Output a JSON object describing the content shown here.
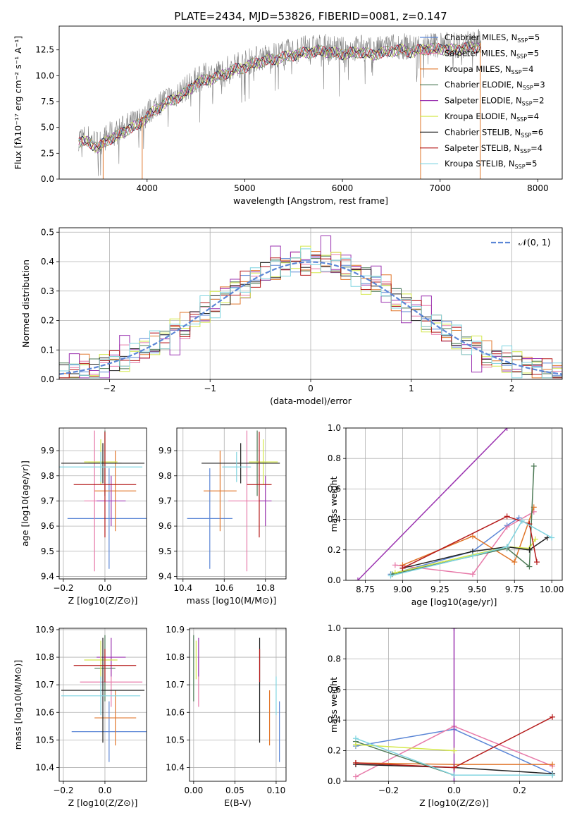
{
  "colors": {
    "Chabrier MILES": "#5b86d6",
    "Salpeter MILES": "#e77aa9",
    "Kroupa MILES": "#e0762a",
    "Chabrier ELODIE": "#4d7a56",
    "Salpeter ELODIE": "#9b33b0",
    "Kroupa ELODIE": "#d4e84a",
    "Chabrier STELIB": "#222222",
    "Salpeter STELIB": "#b51a1a",
    "Kroupa STELIB": "#7fd4e0",
    "normal_curve": "#5b86d6",
    "grid": "#b0b0b0",
    "spectrum": "#808080"
  },
  "chart_data": [
    {
      "type": "line",
      "id": "spectrum",
      "title": "PLATE=2434, MJD=53826, FIBERID=0081, z=0.147",
      "xlabel": "wavelength [Angstrom, rest frame]",
      "ylabel": "Flux [fλ10⁻¹⁷ erg cm⁻² s⁻¹ A⁻¹]",
      "xlim": [
        3100,
        8250
      ],
      "ylim": [
        0,
        14.8
      ],
      "xticks": [
        4000,
        5000,
        6000,
        7000,
        8000
      ],
      "yticks": [
        0.0,
        2.5,
        5.0,
        7.5,
        10.0,
        12.5
      ],
      "grid": false,
      "legend_placement": "top-right",
      "legend": [
        {
          "label": "Chabrier MILES, N",
          "sub": "SSP",
          "suffix": "=5"
        },
        {
          "label": "Salpeter MILES, N",
          "sub": "SSP",
          "suffix": "=5"
        },
        {
          "label": "Kroupa MILES, N",
          "sub": "SSP",
          "suffix": "=4"
        },
        {
          "label": "Chabrier ELODIE, N",
          "sub": "SSP",
          "suffix": "=3"
        },
        {
          "label": "Salpeter ELODIE, N",
          "sub": "SSP",
          "suffix": "=2"
        },
        {
          "label": "Kroupa ELODIE, N",
          "sub": "SSP",
          "suffix": "=4"
        },
        {
          "label": "Chabrier STELIB, N",
          "sub": "SSP",
          "suffix": "=6"
        },
        {
          "label": "Salpeter STELIB, N",
          "sub": "SSP",
          "suffix": "=4"
        },
        {
          "label": "Kroupa STELIB, N",
          "sub": "SSP",
          "suffix": "=5"
        }
      ],
      "envelope": [
        [
          3300,
          4.0
        ],
        [
          3400,
          4.0
        ],
        [
          3500,
          3.4
        ],
        [
          3600,
          4.2
        ],
        [
          3700,
          4.6
        ],
        [
          3800,
          5.2
        ],
        [
          3900,
          5.6
        ],
        [
          4000,
          6.4
        ],
        [
          4100,
          7.2
        ],
        [
          4200,
          7.8
        ],
        [
          4300,
          8.2
        ],
        [
          4400,
          8.8
        ],
        [
          4500,
          9.6
        ],
        [
          4600,
          10.0
        ],
        [
          4700,
          10.2
        ],
        [
          4800,
          10.6
        ],
        [
          4900,
          11.0
        ],
        [
          5000,
          11.2
        ],
        [
          5100,
          11.6
        ],
        [
          5200,
          11.8
        ],
        [
          5300,
          12.0
        ],
        [
          5400,
          12.2
        ],
        [
          5500,
          12.4
        ],
        [
          5600,
          12.6
        ],
        [
          5700,
          12.7
        ],
        [
          5800,
          12.8
        ],
        [
          5900,
          12.6
        ],
        [
          6000,
          12.5
        ],
        [
          6100,
          12.6
        ],
        [
          6200,
          12.7
        ],
        [
          6300,
          12.4
        ],
        [
          6400,
          12.6
        ],
        [
          6500,
          12.8
        ],
        [
          6600,
          12.9
        ],
        [
          6700,
          12.7
        ],
        [
          6800,
          12.9
        ],
        [
          6900,
          13.0
        ],
        [
          7000,
          13.0
        ],
        [
          7100,
          12.9
        ],
        [
          7200,
          13.0
        ],
        [
          7300,
          13.1
        ],
        [
          7400,
          13.2
        ]
      ],
      "vertical_drops": [
        3550,
        3950,
        6800,
        7410
      ]
    },
    {
      "type": "line",
      "id": "residuals",
      "xlabel": "(data-model)/error",
      "ylabel": "Normed distribution",
      "xlim": [
        -2.5,
        2.5
      ],
      "ylim": [
        0,
        0.515
      ],
      "xticks": [
        -2,
        -1,
        0,
        1,
        2
      ],
      "yticks": [
        0.0,
        0.1,
        0.2,
        0.3,
        0.4,
        0.5
      ],
      "grid": true,
      "legend_placement": "top-right",
      "legend": [
        "𝒩(0, 1)"
      ],
      "bin_width": 0.1,
      "hist_jitter": [
        [
          0.02,
          -0.03,
          0.04,
          -0.01,
          0.05,
          -0.04,
          0.03,
          0.0,
          -0.02,
          0.06,
          -0.05,
          0.02,
          0.01,
          -0.03,
          0.04,
          -0.02,
          0.03,
          -0.04,
          0.02,
          0.05,
          -0.01,
          -0.03,
          0.02,
          0.04,
          -0.05,
          0.01,
          0.03,
          -0.02,
          -0.04,
          0.02
        ],
        [
          -0.04,
          0.05,
          -0.02,
          0.03,
          -0.05,
          0.02,
          0.04,
          -0.03,
          0.01,
          -0.02,
          0.06,
          -0.04,
          0.03,
          0.05,
          -0.02,
          0.01,
          -0.06,
          0.03,
          0.02,
          -0.03,
          0.04,
          0.02,
          -0.05,
          0.01,
          0.03,
          -0.04,
          0.02,
          0.05,
          -0.01,
          -0.03
        ]
      ]
    },
    {
      "type": "scatter",
      "id": "age-vs-Z",
      "xlabel": "Z [log10(Z/Z⊙)]",
      "ylabel": "age  [log10(age/yr)]",
      "xlim": [
        -0.22,
        0.2
      ],
      "ylim": [
        9.39,
        9.99
      ],
      "xticks": [
        -0.2,
        0.0
      ],
      "yticks": [
        9.4,
        9.5,
        9.6,
        9.7,
        9.8,
        9.9
      ],
      "grid": true,
      "points": [
        {
          "series": "Chabrier MILES",
          "x": 0.02,
          "xerr": 0.2,
          "y": 9.63,
          "yerr": 0.2
        },
        {
          "series": "Salpeter MILES",
          "x": -0.05,
          "xerr": 0.05,
          "y": 9.7,
          "yerr": 0.28
        },
        {
          "series": "Kroupa MILES",
          "x": 0.05,
          "xerr": 0.1,
          "y": 9.74,
          "yerr": 0.16
        },
        {
          "series": "Chabrier ELODIE",
          "x": 0.0,
          "xerr": 0.08,
          "y": 9.85,
          "yerr": 0.13
        },
        {
          "series": "Salpeter ELODIE",
          "x": 0.03,
          "xerr": 0.07,
          "y": 9.7,
          "yerr": 0.1
        },
        {
          "series": "Kroupa ELODIE",
          "x": -0.02,
          "xerr": 0.08,
          "y": 9.855,
          "yerr": 0.09
        },
        {
          "series": "Chabrier STELIB",
          "x": -0.01,
          "xerr": 0.2,
          "y": 9.85,
          "yerr": 0.08
        },
        {
          "series": "Salpeter STELIB",
          "x": 0.0,
          "xerr": 0.15,
          "y": 9.765,
          "yerr": 0.21
        },
        {
          "series": "Kroupa STELIB",
          "x": -0.02,
          "xerr": 0.2,
          "y": 9.835,
          "yerr": 0.06
        }
      ]
    },
    {
      "type": "scatter",
      "id": "age-vs-mass",
      "xlabel": "mass [log10(M/M⊙)]",
      "ylabel": "",
      "xlim": [
        10.37,
        10.9
      ],
      "ylim": [
        9.39,
        9.99
      ],
      "xticks": [
        10.4,
        10.6,
        10.8
      ],
      "yticks": [
        9.4,
        9.5,
        9.6,
        9.7,
        9.8,
        9.9
      ],
      "grid": true,
      "points": [
        {
          "series": "Chabrier MILES",
          "x": 10.53,
          "xerr": 0.11,
          "y": 9.63,
          "yerr": 0.2
        },
        {
          "series": "Salpeter MILES",
          "x": 10.71,
          "xerr": 0.09,
          "y": 9.7,
          "yerr": 0.28
        },
        {
          "series": "Kroupa MILES",
          "x": 10.58,
          "xerr": 0.08,
          "y": 9.74,
          "yerr": 0.16
        },
        {
          "series": "Chabrier ELODIE",
          "x": 10.76,
          "xerr": 0.05,
          "y": 9.85,
          "yerr": 0.13
        },
        {
          "series": "Salpeter ELODIE",
          "x": 10.8,
          "xerr": 0.03,
          "y": 9.7,
          "yerr": 0.1
        },
        {
          "series": "Kroupa ELODIE",
          "x": 10.79,
          "xerr": 0.07,
          "y": 9.855,
          "yerr": 0.09
        },
        {
          "series": "Chabrier STELIB",
          "x": 10.68,
          "xerr": 0.19,
          "y": 9.85,
          "yerr": 0.08
        },
        {
          "series": "Salpeter STELIB",
          "x": 10.77,
          "xerr": 0.06,
          "y": 9.765,
          "yerr": 0.21
        },
        {
          "series": "Kroupa STELIB",
          "x": 10.66,
          "xerr": 0.07,
          "y": 9.835,
          "yerr": 0.06
        }
      ]
    },
    {
      "type": "line",
      "id": "mass-weight-vs-age",
      "xlabel": "age  [log10(age/yr)]",
      "ylabel": "mass weight",
      "xlim": [
        8.62,
        10.07
      ],
      "ylim": [
        0,
        1.0
      ],
      "xticks": [
        8.75,
        9.0,
        9.25,
        9.5,
        9.75,
        10.0
      ],
      "yticks": [
        0.0,
        0.2,
        0.4,
        0.6,
        0.8,
        1.0
      ],
      "grid": true,
      "series": [
        {
          "name": "Chabrier MILES",
          "x": [
            8.92,
            9.47,
            9.7,
            9.78
          ],
          "y": [
            0.04,
            0.19,
            0.36,
            0.41
          ]
        },
        {
          "name": "Salpeter MILES",
          "x": [
            8.95,
            9.47,
            9.7,
            9.88
          ],
          "y": [
            0.1,
            0.04,
            0.35,
            0.45
          ]
        },
        {
          "name": "Kroupa MILES",
          "x": [
            9.0,
            9.47,
            9.75,
            9.88
          ],
          "y": [
            0.1,
            0.29,
            0.12,
            0.48
          ]
        },
        {
          "name": "Chabrier ELODIE",
          "x": [
            8.93,
            9.7,
            9.85,
            9.88
          ],
          "y": [
            0.04,
            0.21,
            0.09,
            0.75
          ]
        },
        {
          "name": "Salpeter ELODIE",
          "x": [
            8.7,
            9.7
          ],
          "y": [
            0.0,
            1.0
          ]
        },
        {
          "name": "Kroupa ELODIE",
          "x": [
            8.95,
            9.7,
            9.85,
            9.89
          ],
          "y": [
            0.05,
            0.22,
            0.21,
            0.27
          ]
        },
        {
          "name": "Chabrier STELIB",
          "x": [
            9.0,
            9.47,
            9.7,
            9.85,
            9.97
          ],
          "y": [
            0.08,
            0.19,
            0.22,
            0.2,
            0.28
          ]
        },
        {
          "name": "Salpeter STELIB",
          "x": [
            9.0,
            9.7,
            9.85,
            9.9
          ],
          "y": [
            0.08,
            0.42,
            0.37,
            0.12
          ]
        },
        {
          "name": "Kroupa STELIB",
          "x": [
            8.92,
            9.47,
            9.7,
            9.8,
            10.0
          ],
          "y": [
            0.03,
            0.16,
            0.22,
            0.39,
            0.28
          ]
        }
      ]
    },
    {
      "type": "scatter",
      "id": "mass-vs-Z",
      "xlabel": "Z [log10(Z/Z⊙)]",
      "ylabel": "mass [log10(M/M⊙)]",
      "xlim": [
        -0.22,
        0.2
      ],
      "ylim": [
        10.35,
        10.905
      ],
      "xticks": [
        -0.2,
        0.0
      ],
      "yticks": [
        10.4,
        10.5,
        10.6,
        10.7,
        10.8,
        10.9
      ],
      "grid": true,
      "points": [
        {
          "series": "Chabrier MILES",
          "x": 0.02,
          "xerr": 0.18,
          "y": 10.53,
          "yerr": 0.11
        },
        {
          "series": "Salpeter MILES",
          "x": 0.03,
          "xerr": 0.15,
          "y": 10.71,
          "yerr": 0.09
        },
        {
          "series": "Kroupa MILES",
          "x": 0.05,
          "xerr": 0.1,
          "y": 10.58,
          "yerr": 0.1
        },
        {
          "series": "Chabrier ELODIE",
          "x": 0.0,
          "xerr": 0.05,
          "y": 10.76,
          "yerr": 0.12
        },
        {
          "series": "Salpeter ELODIE",
          "x": 0.03,
          "xerr": 0.07,
          "y": 10.8,
          "yerr": 0.07
        },
        {
          "series": "Kroupa ELODIE",
          "x": -0.02,
          "xerr": 0.08,
          "y": 10.79,
          "yerr": 0.07
        },
        {
          "series": "Chabrier STELIB",
          "x": -0.01,
          "xerr": 0.2,
          "y": 10.68,
          "yerr": 0.19
        },
        {
          "series": "Salpeter STELIB",
          "x": 0.0,
          "xerr": 0.15,
          "y": 10.77,
          "yerr": 0.06
        },
        {
          "series": "Kroupa STELIB",
          "x": -0.02,
          "xerr": 0.19,
          "y": 10.66,
          "yerr": 0.07
        }
      ]
    },
    {
      "type": "scatter",
      "id": "mass-vs-EBV",
      "xlabel": "E(B-V)",
      "ylabel": "",
      "xlim": [
        -0.005,
        0.112
      ],
      "ylim": [
        10.35,
        10.905
      ],
      "xticks": [
        0.0,
        0.05,
        0.1
      ],
      "yticks": [
        10.4,
        10.5,
        10.6,
        10.7,
        10.8,
        10.9
      ],
      "grid": true,
      "points": [
        {
          "series": "Chabrier MILES",
          "x": 0.104,
          "y": 10.53,
          "yerr": 0.11
        },
        {
          "series": "Salpeter MILES",
          "x": 0.006,
          "y": 10.71,
          "yerr": 0.09
        },
        {
          "series": "Kroupa MILES",
          "x": 0.092,
          "y": 10.58,
          "yerr": 0.1
        },
        {
          "series": "Chabrier ELODIE",
          "x": 0.0,
          "y": 10.76,
          "yerr": 0.12
        },
        {
          "series": "Salpeter ELODIE",
          "x": 0.006,
          "y": 10.8,
          "yerr": 0.07
        },
        {
          "series": "Kroupa ELODIE",
          "x": 0.003,
          "y": 10.79,
          "yerr": 0.07
        },
        {
          "series": "Chabrier STELIB",
          "x": 0.08,
          "y": 10.68,
          "yerr": 0.19
        },
        {
          "series": "Salpeter STELIB",
          "x": 0.08,
          "y": 10.77,
          "yerr": 0.06
        },
        {
          "series": "Kroupa STELIB",
          "x": 0.1,
          "y": 10.66,
          "yerr": 0.07
        }
      ]
    },
    {
      "type": "line",
      "id": "mass-weight-vs-Z",
      "xlabel": "Z [log10(Z/Z⊙)]",
      "ylabel": "mass weight",
      "xlim": [
        -0.33,
        0.33
      ],
      "ylim": [
        0,
        1.0
      ],
      "xticks": [
        -0.2,
        0.0,
        0.2
      ],
      "yticks": [
        0.0,
        0.2,
        0.4,
        0.6,
        0.8,
        1.0
      ],
      "grid": true,
      "series": [
        {
          "name": "Chabrier MILES",
          "x": [
            -0.3,
            0.0,
            0.3
          ],
          "y": [
            0.23,
            0.34,
            0.05
          ]
        },
        {
          "name": "Salpeter MILES",
          "x": [
            -0.3,
            0.0,
            0.3
          ],
          "y": [
            0.03,
            0.36,
            0.1
          ]
        },
        {
          "name": "Kroupa MILES",
          "x": [
            -0.3,
            0.0,
            0.3
          ],
          "y": [
            0.12,
            0.11,
            0.11
          ]
        },
        {
          "name": "Chabrier ELODIE",
          "x": [
            -0.3,
            0.0,
            0.3
          ],
          "y": [
            0.26,
            0.04,
            0.04
          ]
        },
        {
          "name": "Salpeter ELODIE",
          "x": [
            0.0,
            0.0
          ],
          "y": [
            0.0,
            1.0
          ]
        },
        {
          "name": "Kroupa ELODIE",
          "x": [
            -0.3,
            0.0
          ],
          "y": [
            0.24,
            0.2
          ]
        },
        {
          "name": "Chabrier STELIB",
          "x": [
            -0.3,
            0.0,
            0.3
          ],
          "y": [
            0.11,
            0.09,
            0.05
          ]
        },
        {
          "name": "Salpeter STELIB",
          "x": [
            -0.3,
            0.0,
            0.3
          ],
          "y": [
            0.12,
            0.09,
            0.42
          ]
        },
        {
          "name": "Kroupa STELIB",
          "x": [
            -0.3,
            0.0,
            0.3
          ],
          "y": [
            0.28,
            0.04,
            0.04
          ]
        }
      ]
    }
  ]
}
